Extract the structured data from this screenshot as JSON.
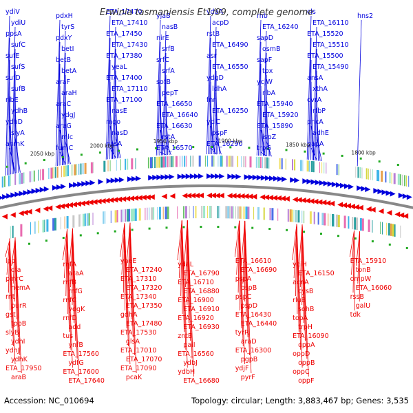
{
  "title": "Erwinia tasmaniensis Et1/99, complete genome",
  "accession": "Accession: NC_010694",
  "summary": "Topology: circular; Length: 3,883,467 bp; Genes: 3,535",
  "colors": {
    "forward": "#0000dd",
    "reverse": "#ee0000",
    "backbone": "#888888",
    "tick_mark": "#22aa22"
  },
  "ticks": [
    "2050 kbp",
    "2000 kbp",
    "1950 kbp",
    "1900 kbp",
    "1850 kbp",
    "1800 kbp"
  ],
  "forward_genes": [
    "ydiV",
    "ydiU",
    "ppsA",
    "sufC",
    "sufE",
    "sufS",
    "sufD",
    "sufB",
    "ribE",
    "ydhB",
    "ydhD",
    "slyA",
    "anmK",
    "pdxH",
    "tyrS",
    "pdxY",
    "betI",
    "betB",
    "betA",
    "araF",
    "araH",
    "araC",
    "ydgJ",
    "araG",
    "mlc",
    "fumC",
    "ETA_17470",
    "ETA_17410",
    "ETA_17450",
    "ETA_17430",
    "ETA_17380",
    "yeaL",
    "ETA_17400",
    "ETA_17110",
    "ETA_17100",
    "nasE",
    "mgo",
    "nasD",
    "nasA",
    "yjaB",
    "nasB",
    "nirE",
    "srfB",
    "srfC",
    "srfA",
    "sotB",
    "pepT",
    "ETA_16650",
    "ETA_16640",
    "ETA_16630",
    "rstA",
    "ETA_16570",
    "ydaA",
    "acpD",
    "rstB",
    "ETA_16490",
    "asr",
    "ETA_16550",
    "ydgD",
    "ldhA",
    "fnr",
    "ETA_16250",
    "yciC",
    "pspF",
    "ETA_16290",
    "rnb",
    "ETA_16240",
    "sapD",
    "osmB",
    "sapF",
    "tpx",
    "ycjW",
    "ribA",
    "ETA_15940",
    "ETA_15920",
    "ETA_15890",
    "ispZ",
    "trpG",
    "cls",
    "ETA_16110",
    "ETA_15520",
    "ETA_15510",
    "ETA_15500",
    "ETA_15490",
    "ansA",
    "xthA",
    "cvrA",
    "rfbP",
    "pncA",
    "adhE",
    "gapA",
    "hns2"
  ],
  "reverse_genes": [
    "lpp",
    "cfa",
    "pmrC",
    "nemA",
    "rnt",
    "purR",
    "gst",
    "tppB",
    "slyB",
    "ydhI",
    "ydhJ",
    "ydhK",
    "ETA_17950",
    "araB",
    "rnfA",
    "araA",
    "rnfB",
    "rnfG",
    "rnfC",
    "ydgK",
    "rnfD",
    "add",
    "tus",
    "ynfB",
    "ETA_17560",
    "ydfG",
    "ETA_17600",
    "ETA_17640",
    "yneE",
    "ETA_17240",
    "ETA_17310",
    "ETA_17320",
    "ETA_17340",
    "ETA_17350",
    "gdhA",
    "ETA_17480",
    "ETA_17530",
    "glsA",
    "ETA_17010",
    "ETA_17070",
    "ETA_17090",
    "pcaK",
    "ydaL",
    "ETA_16790",
    "ETA_16710",
    "ETA_16880",
    "ETA_16900",
    "ETA_16910",
    "ETA_16920",
    "ETA_16930",
    "zntB",
    "paiI",
    "ETA_16560",
    "ydbJ",
    "ydbH",
    "ETA_16680",
    "ETA_16610",
    "ETA_16690",
    "pspA",
    "pspB",
    "pspC",
    "pspD",
    "ETA_16430",
    "ETA_16440",
    "tyrR",
    "araD",
    "ETA_16300",
    "pgpB",
    "ydjF",
    "pyrF",
    "yciH",
    "ETA_16150",
    "acnA",
    "cysB",
    "rluB",
    "sohB",
    "topA",
    "trpH",
    "ETA_16090",
    "oppA",
    "oppD",
    "oppB",
    "oppC",
    "oppF",
    "ETA_15910",
    "tonB",
    "ompW",
    "ETA_16060",
    "rssB",
    "galU",
    "tdk"
  ]
}
